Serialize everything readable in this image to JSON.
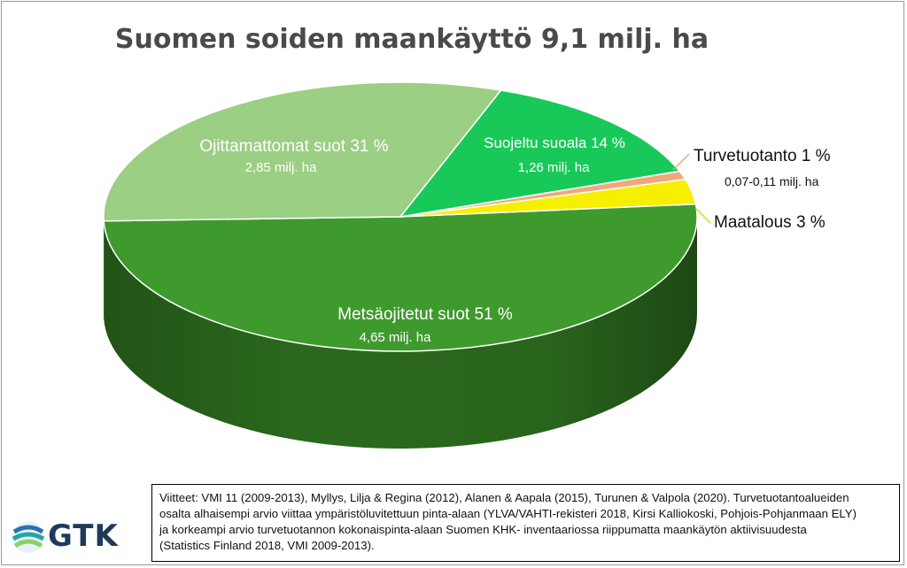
{
  "chart_data": {
    "type": "pie",
    "title": "Suomen soiden maankäyttö 9,1 milj. ha",
    "slices": [
      {
        "label": "Metsäojitetut suot 51 %",
        "sub": "4,65 milj. ha",
        "value": 51,
        "color": "#3f9a2d",
        "dark": "#2d6f1f"
      },
      {
        "label": "Ojittamattomat suot 31 %",
        "sub": "2,85 milj. ha",
        "value": 31,
        "color": "#9bcf83",
        "dark": "#6e9a5c"
      },
      {
        "label": "Suojeltu suoala 14 %",
        "sub": "1,26 milj. ha",
        "value": 14,
        "color": "#18c95a",
        "dark": "#0e8a3c"
      },
      {
        "label": "Turvetuotanto 1 %",
        "sub": "0,07-0,11 milj. ha",
        "value": 1,
        "color": "#f2a77a",
        "dark": "#b8774f"
      },
      {
        "label": "Maatalous 3 %",
        "sub": "",
        "value": 3,
        "color": "#f6f000",
        "dark": "#b8b200"
      }
    ]
  },
  "references": {
    "line1": "Viitteet: VMI 11 (2009-2013), Myllys, Lilja & Regina (2012), Alanen & Aapala (2015), Turunen & Valpola (2020). Turvetuotantoalueiden",
    "line2": "osalta alhaisempi arvio viittaa ympäristöluvitettuun pinta-alaan  (YLVA/VAHTI-rekisteri 2018, Kirsi Kalliokoski,  Pohjois-Pohjanmaan ELY)",
    "line3": "ja korkeampi arvio turvetuotannon kokonaispinta-alaan Suomen KHK- inventaariossa riippumatta maankäytön aktiivisuudesta",
    "line4": "(Statistics Finland 2018, VMI 2009-2013)."
  },
  "logo": {
    "text": "GTK",
    "colors": [
      "#2a6fb5",
      "#1fa7a0",
      "#8fcf6a"
    ]
  }
}
